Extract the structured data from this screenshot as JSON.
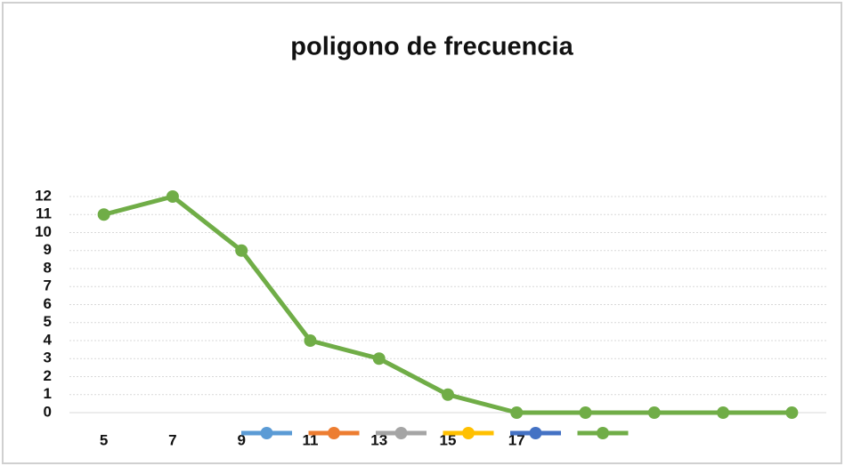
{
  "chart_data": {
    "type": "line",
    "title": "poligono de frecuencia",
    "categories": [
      "5",
      "7",
      "9",
      "11",
      "13",
      "15",
      "17",
      null,
      null,
      null,
      null
    ],
    "series": [
      {
        "color": "#70ad47",
        "values": [
          11,
          12,
          9,
          4,
          3,
          1,
          0,
          0,
          0,
          0,
          0
        ]
      }
    ],
    "ylim": [
      0,
      12
    ],
    "yticks": [
      0,
      1,
      2,
      3,
      4,
      5,
      6,
      7,
      8,
      9,
      10,
      11,
      12
    ],
    "grid": true,
    "legend": {
      "position": "bottom",
      "colors": [
        "#5b9bd5",
        "#ed7d31",
        "#a5a5a5",
        "#ffc000",
        "#4472c4",
        "#70ad47"
      ]
    }
  }
}
